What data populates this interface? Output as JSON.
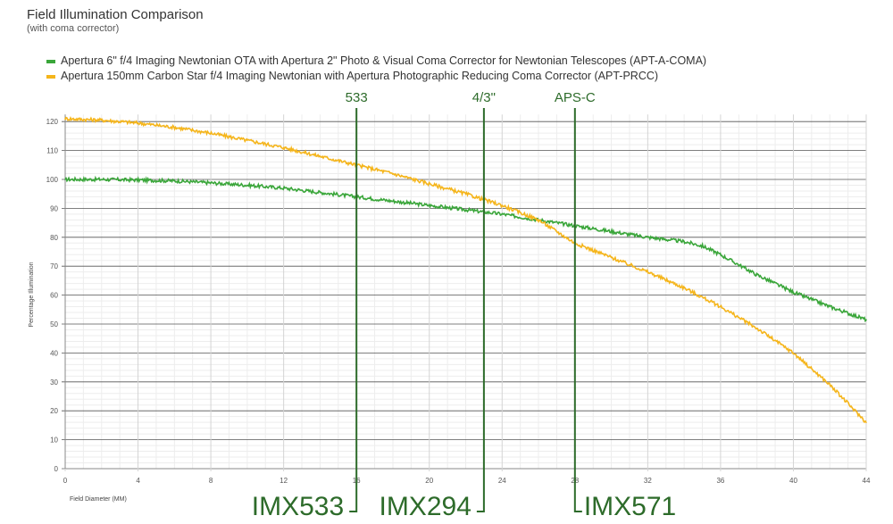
{
  "chart_data": {
    "type": "line",
    "title": "Field Illumination Comparison",
    "subtitle": "(with coma corrector)",
    "xlabel": "Field Diameter (MM)",
    "ylabel": "Percentage Illumination",
    "xlim": [
      0,
      44
    ],
    "ylim": [
      0,
      125
    ],
    "xticks": [
      0,
      4,
      8,
      12,
      16,
      20,
      24,
      28,
      32,
      36,
      40,
      44
    ],
    "yticks": [
      0,
      10,
      20,
      30,
      40,
      50,
      60,
      70,
      80,
      90,
      100,
      110,
      120
    ],
    "grid": true,
    "legend_position": "top-left",
    "series": [
      {
        "name": "Apertura 6\" f/4 Imaging Newtonian OTA with Apertura 2\" Photo & Visual Coma Corrector for Newtonian Telescopes (APT-A-COMA)",
        "color": "#3aa63a",
        "x": [
          0,
          2,
          4,
          6,
          8,
          10,
          12,
          14,
          16,
          18,
          20,
          22,
          24,
          26,
          28,
          30,
          32,
          34,
          35,
          36,
          38,
          40,
          42,
          44
        ],
        "y": [
          100,
          100,
          99.8,
          99.5,
          98.8,
          98,
          97,
          95.5,
          94,
          92.5,
          91,
          89.5,
          88,
          86,
          84,
          82,
          80,
          78.5,
          77,
          74,
          67,
          61,
          56,
          51.5
        ]
      },
      {
        "name": "Apertura 150mm Carbon Star f/4 Imaging Newtonian with Apertura Photographic Reducing Coma Corrector (APT-PRCC)",
        "color": "#f5b51b",
        "x": [
          0,
          2,
          4,
          6,
          8,
          10,
          12,
          14,
          16,
          18,
          20,
          22,
          24,
          26,
          27,
          28,
          30,
          32,
          34,
          36,
          38,
          40,
          42,
          44
        ],
        "y": [
          121,
          120.5,
          119.5,
          118,
          116,
          113.5,
          111,
          108,
          105,
          102,
          98.5,
          95,
          91,
          86,
          82,
          78,
          73,
          68,
          62.5,
          56,
          48.5,
          40,
          29,
          16
        ]
      }
    ],
    "sensor_lines": [
      {
        "x": 16,
        "top_label": "533",
        "bottom_label": "IMX533",
        "bracket": "left"
      },
      {
        "x": 23,
        "top_label": "4/3\"",
        "bottom_label": "IMX294",
        "bracket": "left"
      },
      {
        "x": 28,
        "top_label": "APS-C",
        "bottom_label": "IMX571",
        "bracket": "right"
      }
    ],
    "marker_color": "#2d6b2a"
  }
}
